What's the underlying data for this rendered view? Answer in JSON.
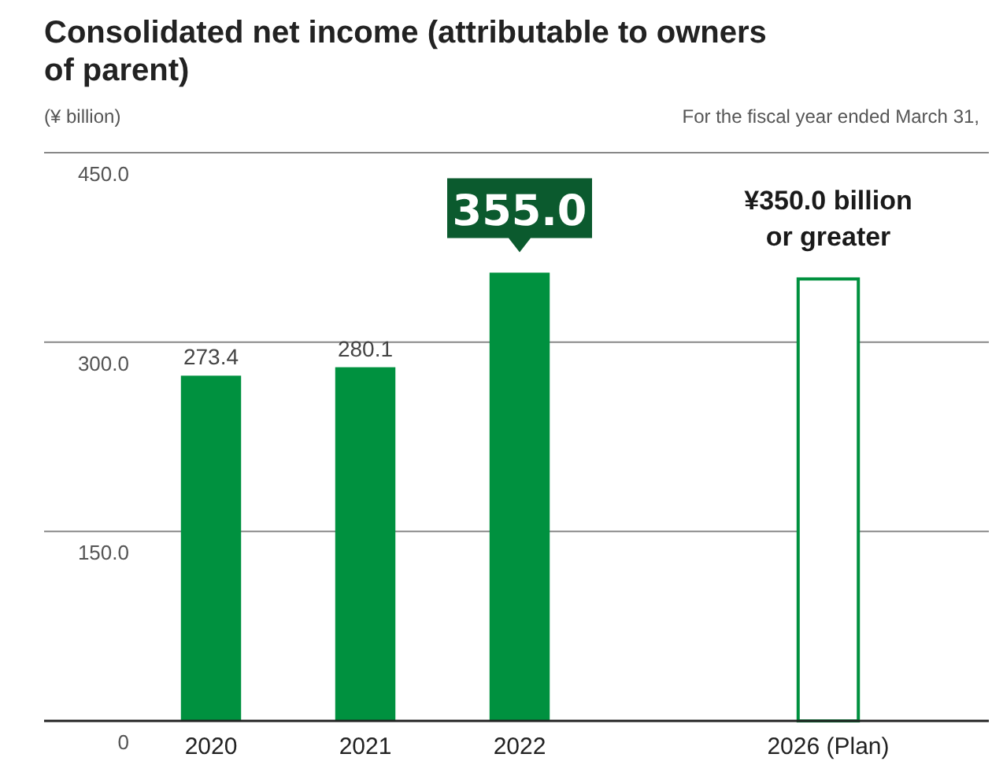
{
  "chart_data": {
    "type": "bar",
    "title": "Consolidated net income (attributable to owners\nof parent)",
    "ylabel": "(¥ billion)",
    "annotations": [
      "For the fiscal year ended March 31,"
    ],
    "categories": [
      "2020",
      "2021",
      "2022",
      null,
      "2026 (Plan)"
    ],
    "values": [
      273.4,
      280.1,
      355.0,
      null,
      350
    ],
    "color": "#00913f",
    "colors": [
      "#00913f",
      "#00913f",
      "#00913f",
      null,
      "#ffffff"
    ],
    "value_labels": [
      "273.4",
      "280.1",
      "355.0",
      null,
      "¥350.0 billion\nor greater"
    ],
    "ylim": [
      0,
      450
    ],
    "yticks": [
      {
        "value": 0,
        "label": "0"
      },
      {
        "value": 150,
        "label": "150.0"
      },
      {
        "value": 300,
        "label": "300.0"
      },
      {
        "value": 450,
        "label": "450.0"
      }
    ],
    "grid": "y"
  }
}
